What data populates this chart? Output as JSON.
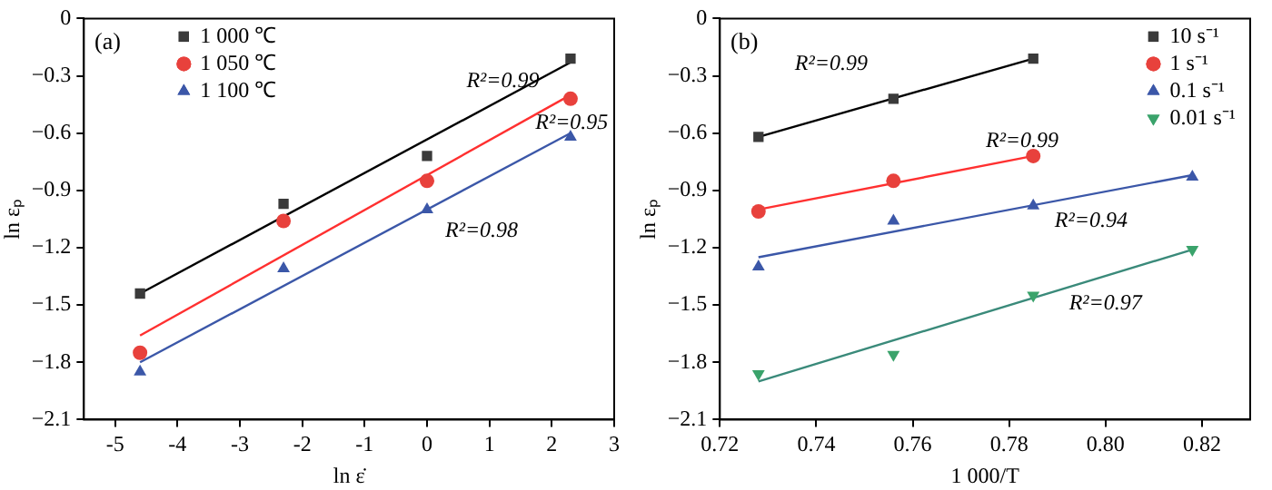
{
  "chart_data": [
    {
      "type": "scatter",
      "xlabel": "ln ε̇",
      "ylabel": "ln εₚ",
      "xlim": [
        -5.5,
        3
      ],
      "xticks": [
        -5,
        -4,
        -3,
        -2,
        -1,
        0,
        1,
        2,
        3
      ],
      "ylim": [
        -2.1,
        0
      ],
      "yticks": [
        -2.1,
        -1.8,
        -1.5,
        -1.2,
        -0.9,
        -0.6,
        -0.3,
        0
      ],
      "grid": false,
      "legend": "top left",
      "annotations": [
        "(a)",
        "R²=0.99",
        "R²=0.95",
        "R²=0.98"
      ],
      "series": [
        {
          "name": "1 000 ℃",
          "color": "#3a3a3a",
          "marker": "square",
          "x": [
            -4.6,
            -2.3,
            0,
            2.3
          ],
          "values": [
            -1.44,
            -0.97,
            -0.72,
            -0.21
          ]
        },
        {
          "name": "1 050 ℃",
          "color": "#e8413c",
          "marker": "circle",
          "x": [
            -4.6,
            -2.3,
            0,
            2.3
          ],
          "values": [
            -1.75,
            -1.06,
            -0.85,
            -0.42
          ]
        },
        {
          "name": "1 100 ℃",
          "color": "#3b57a8",
          "marker": "triangle",
          "x": [
            -4.6,
            -2.3,
            0,
            2.3
          ],
          "values": [
            -1.85,
            -1.31,
            -1.0,
            -0.62
          ]
        },
        {
          "type": "line",
          "color": "#000000",
          "marker": "none",
          "x": [
            -4.6,
            2.3
          ],
          "values": [
            -1.44,
            -0.23
          ]
        },
        {
          "type": "line",
          "color": "#ff3030",
          "marker": "none",
          "x": [
            -4.6,
            2.3
          ],
          "values": [
            -1.66,
            -0.4
          ]
        },
        {
          "type": "line",
          "color": "#3b57a8",
          "marker": "none",
          "x": [
            -4.6,
            2.3
          ],
          "values": [
            -1.8,
            -0.6
          ]
        }
      ]
    },
    {
      "type": "scatter",
      "xlabel": "1 000/T",
      "ylabel": "ln εₚ",
      "xlim": [
        0.72,
        0.83
      ],
      "xticks": [
        {
          "value": 0.72,
          "label": "0.72"
        },
        {
          "value": 0.74,
          "label": "0.74"
        },
        {
          "value": 0.76,
          "label": "0.76"
        },
        {
          "value": 0.78,
          "label": "0.78"
        },
        {
          "value": 0.8,
          "label": "0.80"
        },
        {
          "value": 0.82,
          "label": "0.82"
        }
      ],
      "ylim": [
        -2.1,
        0
      ],
      "yticks": [
        -2.1,
        -1.8,
        -1.5,
        -1.2,
        -0.9,
        -0.6,
        -0.3,
        0
      ],
      "grid": false,
      "legend": "top right",
      "annotations": [
        "(b)",
        "R²=0.99",
        "R²=0.99",
        "R²=0.94",
        "R²=0.97"
      ],
      "series": [
        {
          "name": "10 s⁻¹",
          "color": "#3a3a3a",
          "marker": "square",
          "x": [
            0.728,
            0.756,
            0.785
          ],
          "values": [
            -0.62,
            -0.42,
            -0.21
          ]
        },
        {
          "name": "1 s⁻¹",
          "color": "#e8413c",
          "marker": "circle",
          "x": [
            0.728,
            0.756,
            0.785
          ],
          "values": [
            -1.01,
            -0.85,
            -0.72
          ]
        },
        {
          "name": "0.1 s⁻¹",
          "color": "#3b57a8",
          "marker": "triangle",
          "x": [
            0.728,
            0.756,
            0.785,
            0.818
          ],
          "values": [
            -1.3,
            -1.06,
            -0.98,
            -0.83
          ]
        },
        {
          "name": "0.01 s⁻¹",
          "color": "#3aa36b",
          "marker": "triangle-down",
          "x": [
            0.728,
            0.756,
            0.785,
            0.818
          ],
          "values": [
            -1.86,
            -1.76,
            -1.45,
            -1.21
          ]
        },
        {
          "type": "line",
          "color": "#000000",
          "marker": "none",
          "x": [
            0.728,
            0.785
          ],
          "values": [
            -0.62,
            -0.21
          ]
        },
        {
          "type": "line",
          "color": "#ff3030",
          "marker": "none",
          "x": [
            0.728,
            0.785
          ],
          "values": [
            -1.0,
            -0.72
          ]
        },
        {
          "type": "line",
          "color": "#3b57a8",
          "marker": "none",
          "x": [
            0.728,
            0.818
          ],
          "values": [
            -1.25,
            -0.82
          ]
        },
        {
          "type": "line",
          "color": "#3a8a7a",
          "marker": "none",
          "x": [
            0.728,
            0.818
          ],
          "values": [
            -1.9,
            -1.21
          ]
        }
      ]
    }
  ]
}
